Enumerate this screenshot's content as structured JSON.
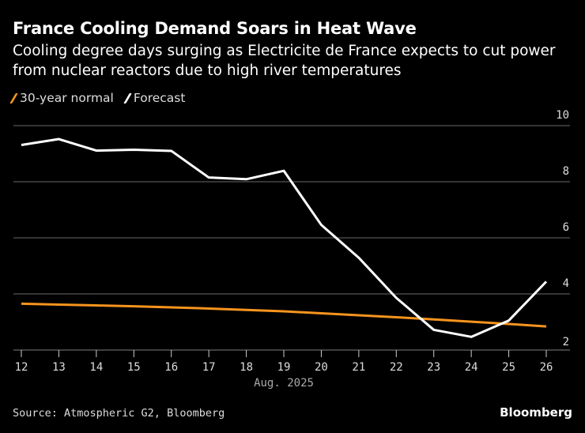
{
  "chart_data": {
    "type": "line",
    "title": "France Cooling Demand Soars in Heat Wave",
    "subtitle": "Cooling degree days surging as Electricite de France expects to cut power from nuclear reactors due to high river temperatures",
    "xlabel": "Aug. 2025",
    "x": [
      12,
      13,
      14,
      15,
      16,
      17,
      18,
      19,
      20,
      21,
      22,
      23,
      24,
      25,
      26
    ],
    "x_tick_labels": [
      "12",
      "13",
      "14",
      "15",
      "16",
      "17",
      "18",
      "19",
      "20",
      "21",
      "22",
      "23",
      "24",
      "25",
      "26"
    ],
    "y_ticks": [
      "2",
      "4",
      "6",
      "8",
      "10"
    ],
    "ylim": [
      2,
      10
    ],
    "grid": true,
    "y_axis_position": "right",
    "legend_placement": "top-left",
    "series": [
      {
        "name": "30-year normal",
        "color": "#f7941d",
        "values": [
          3.65,
          3.62,
          3.59,
          3.56,
          3.52,
          3.48,
          3.43,
          3.38,
          3.31,
          3.24,
          3.17,
          3.09,
          3.01,
          2.93,
          2.84
        ]
      },
      {
        "name": "Forecast",
        "color": "#ffffff",
        "values": [
          9.31,
          9.52,
          9.11,
          9.14,
          9.1,
          8.15,
          8.09,
          8.39,
          6.46,
          5.29,
          3.86,
          2.72,
          2.47,
          3.05,
          4.44
        ]
      }
    ]
  },
  "footer": {
    "source": "Source: Atmospheric G2, Bloomberg",
    "brand": "Bloomberg"
  }
}
